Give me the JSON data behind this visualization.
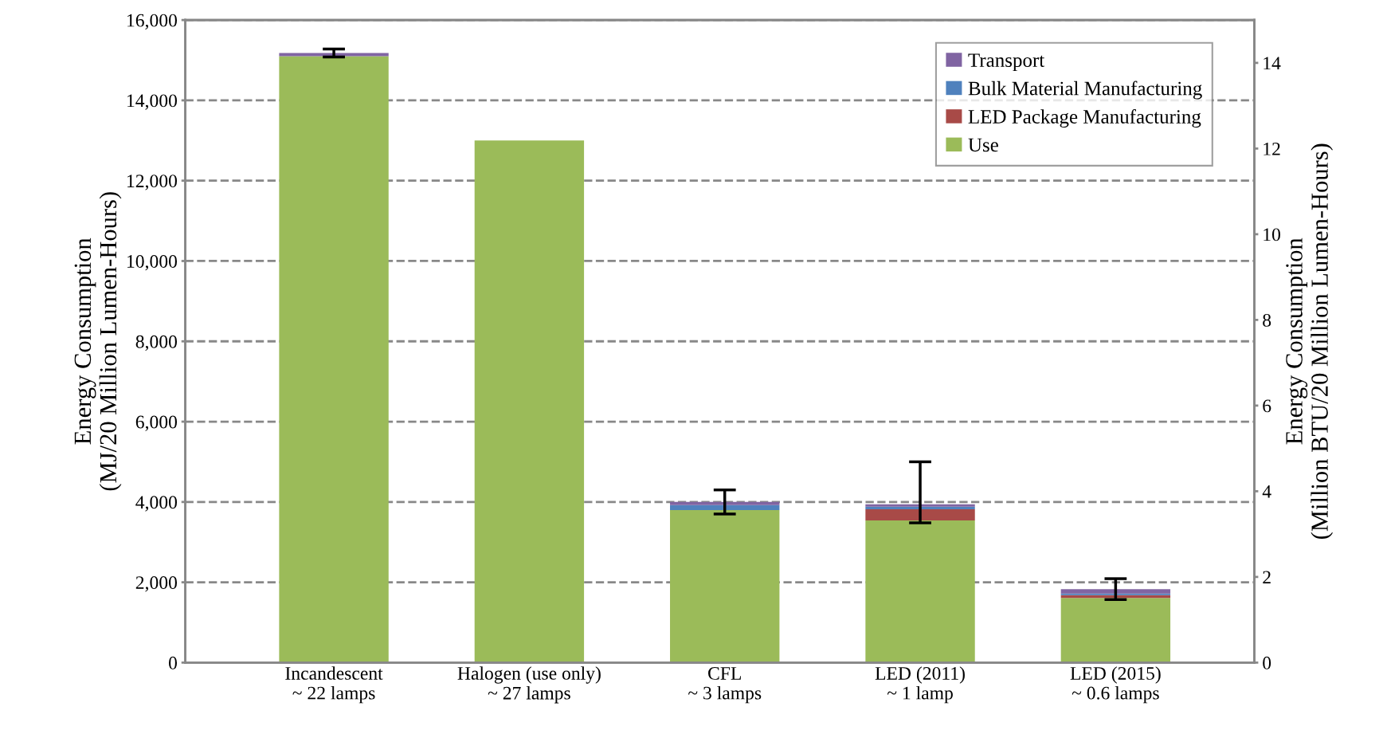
{
  "chart_data": {
    "type": "bar",
    "stacked": true,
    "categories": [
      "Incandescent\n~ 22 lamps",
      "Halogen (use only)\n~ 27 lamps",
      "CFL\n~ 3 lamps",
      "LED (2011)\n~ 1 lamp",
      "LED (2015)\n~ 0.6 lamps"
    ],
    "series": [
      {
        "name": "Use",
        "color": "#9bbb59",
        "values": [
          15100,
          13000,
          3800,
          3540,
          1610
        ]
      },
      {
        "name": "LED Package Manufacturing",
        "color": "#a84a47",
        "values": [
          null,
          null,
          null,
          280,
          70
        ]
      },
      {
        "name": "Bulk Material Manufacturing",
        "color": "#4f81bd",
        "values": [
          null,
          null,
          120,
          60,
          40
        ]
      },
      {
        "name": "Transport",
        "color": "#8064a2",
        "values": [
          80,
          null,
          80,
          60,
          110
        ],
        "errors": [
          100,
          null,
          300,
          [
            3480,
            5000
          ],
          260
        ]
      }
    ],
    "ylabel": "Energy Consumption\n(MJ/20 Million Lumen-Hours)",
    "y2label": "Energy Consumption\n(Million BTU/20 Million Lumen-Hours)",
    "ylim": [
      0,
      16000
    ],
    "yticks": [
      {
        "value": 0,
        "label": "0"
      },
      {
        "value": 2000,
        "label": "2,000"
      },
      {
        "value": 4000,
        "label": "4,000"
      },
      {
        "value": 6000,
        "label": "6,000"
      },
      {
        "value": 8000,
        "label": "8,000"
      },
      {
        "value": 10000,
        "label": "10,000"
      },
      {
        "value": 12000,
        "label": "12,000"
      },
      {
        "value": 14000,
        "label": "14,000"
      },
      {
        "value": 16000,
        "label": "16,000"
      }
    ],
    "y2lim": [
      0,
      15
    ],
    "y2ticks": [
      0,
      2,
      4,
      6,
      8,
      10,
      12,
      14
    ],
    "grid": "y",
    "legend": "top right"
  }
}
